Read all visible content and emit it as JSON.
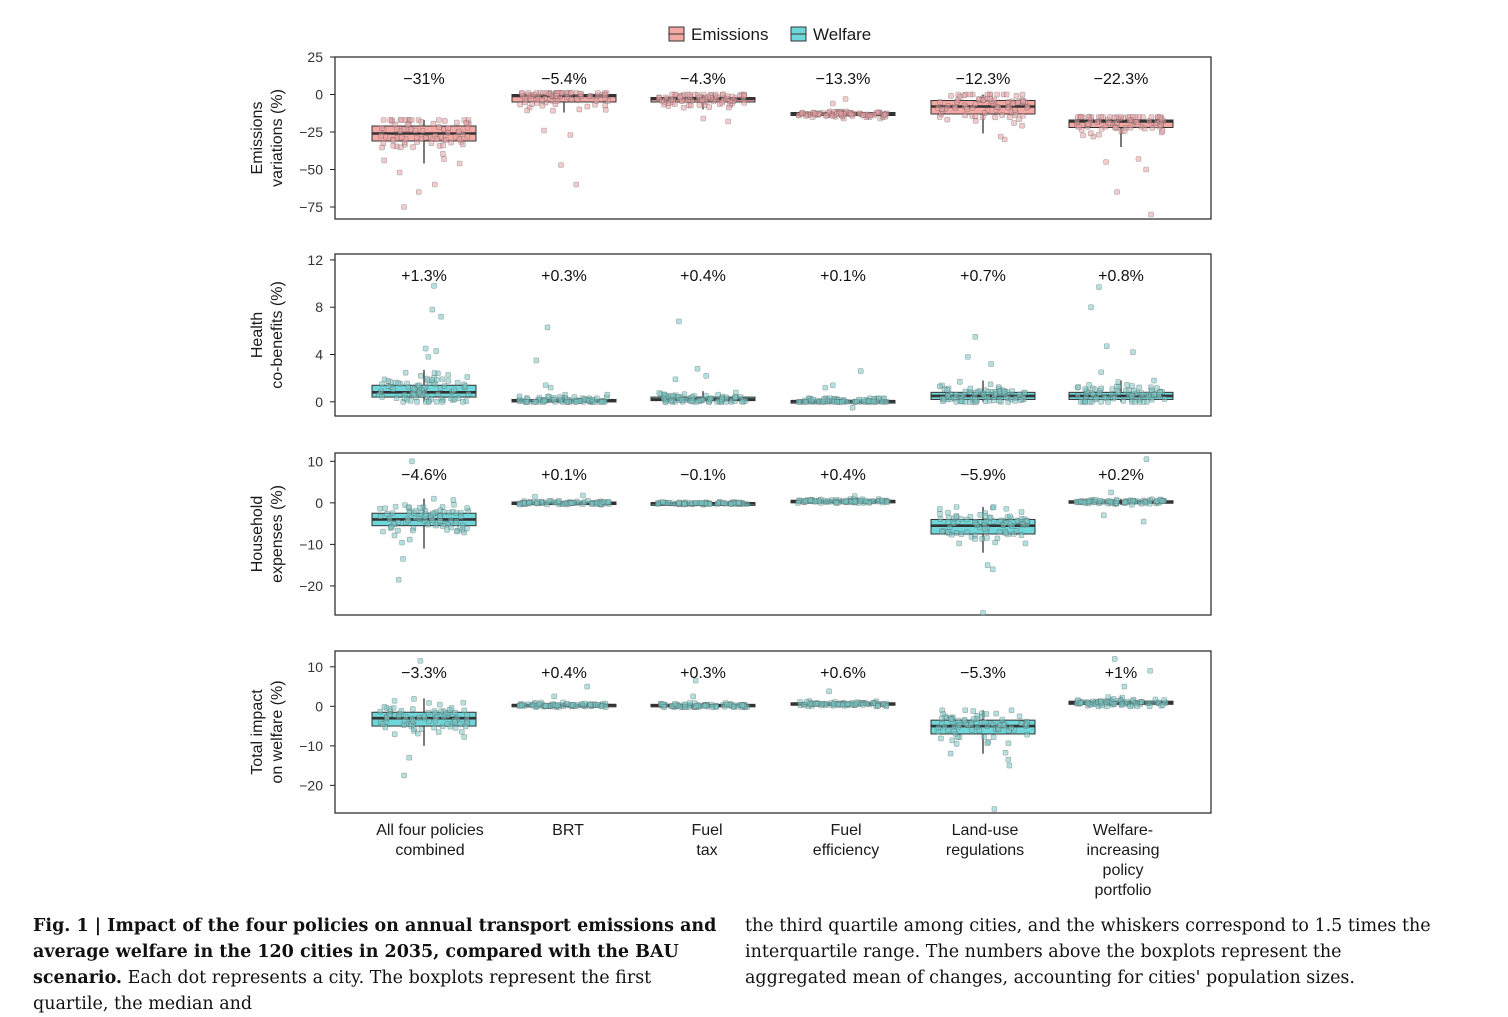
{
  "legend": [
    {
      "label": "Emissions",
      "color": "#f4a8a4"
    },
    {
      "label": "Welfare",
      "color": "#6fd6da"
    }
  ],
  "colors": {
    "emissions": "#f4a8a4",
    "welfare": "#6fd6da",
    "dot_emissions": "#e9a0a4",
    "dot_welfare": "#77c6c4",
    "median": "#333333"
  },
  "chart_data": {
    "type": "boxplot",
    "categories": [
      [
        "All four policies",
        "combined"
      ],
      [
        "BRT"
      ],
      [
        "Fuel",
        "tax"
      ],
      [
        "Fuel",
        "efficiency"
      ],
      [
        "Land-use",
        "regulations"
      ],
      [
        "Welfare-",
        "increasing",
        "policy",
        "portfolio"
      ]
    ],
    "panels": [
      {
        "ylabel": [
          "Emissions",
          "variations (%)"
        ],
        "ylim": [
          -83,
          25
        ],
        "yticks": [
          "25",
          "0",
          "−25",
          "−50",
          "−75"
        ],
        "ytick_values": [
          25,
          0,
          -25,
          -50,
          -75
        ],
        "color_key": "emissions",
        "annotations": [
          "−31%",
          "−5.4%",
          "−4.3%",
          "−13.3%",
          "−12.3%",
          "−22.3%"
        ],
        "boxes": [
          {
            "q1": -31,
            "median": -26,
            "q3": -21,
            "whisker_low": -46,
            "whisker_high": -17,
            "spread": 15,
            "outliers": [
              -75,
              -65,
              -60,
              -52
            ]
          },
          {
            "q1": -5,
            "median": -1,
            "q3": 0,
            "whisker_low": -12,
            "whisker_high": 1,
            "spread": 8,
            "outliers": [
              -47,
              -60,
              -27,
              -24
            ]
          },
          {
            "q1": -5,
            "median": -3,
            "q3": -2,
            "whisker_low": -10,
            "whisker_high": 0,
            "spread": 5,
            "outliers": [
              -18,
              -16
            ]
          },
          {
            "q1": -14,
            "median": -13,
            "q3": -12,
            "whisker_low": -16,
            "whisker_high": -10,
            "spread": 2,
            "outliers": [
              -3,
              -6
            ]
          },
          {
            "q1": -13,
            "median": -8,
            "q3": -4,
            "whisker_low": -26,
            "whisker_high": 0,
            "spread": 10,
            "outliers": [
              -30,
              -28
            ]
          },
          {
            "q1": -22,
            "median": -18,
            "q3": -17,
            "whisker_low": -35,
            "whisker_high": -15,
            "spread": 8,
            "outliers": [
              -80,
              -65,
              -50,
              -45,
              -43
            ]
          }
        ]
      },
      {
        "ylabel": [
          "Health",
          "co-benefits (%)"
        ],
        "ylim": [
          -1.2,
          12.5
        ],
        "yticks": [
          "12",
          "8",
          "4",
          "0"
        ],
        "ytick_values": [
          12,
          8,
          4,
          0
        ],
        "color_key": "welfare",
        "annotations": [
          "+1.3%",
          "+0.3%",
          "+0.4%",
          "+0.1%",
          "+0.7%",
          "+0.8%"
        ],
        "boxes": [
          {
            "q1": 0.4,
            "median": 0.8,
            "q3": 1.4,
            "whisker_low": 0,
            "whisker_high": 2.7,
            "spread": 1.2,
            "outliers": [
              9.8,
              7.8,
              7.2,
              4.5,
              4.3,
              3.8
            ]
          },
          {
            "q1": 0,
            "median": 0.1,
            "q3": 0.2,
            "whisker_low": 0,
            "whisker_high": 0.6,
            "spread": 0.4,
            "outliers": [
              6.3,
              3.5,
              1.4,
              1.2
            ]
          },
          {
            "q1": 0.1,
            "median": 0.2,
            "q3": 0.4,
            "whisker_low": 0,
            "whisker_high": 0.9,
            "spread": 0.5,
            "outliers": [
              6.8,
              2.8,
              2.2,
              1.9
            ]
          },
          {
            "q1": 0,
            "median": 0.05,
            "q3": 0.1,
            "whisker_low": 0,
            "whisker_high": 0.3,
            "spread": 0.3,
            "outliers": [
              2.6,
              1.4,
              1.2,
              -0.5
            ]
          },
          {
            "q1": 0.2,
            "median": 0.5,
            "q3": 0.8,
            "whisker_low": 0,
            "whisker_high": 1.8,
            "spread": 0.8,
            "outliers": [
              5.5,
              3.8,
              3.2
            ]
          },
          {
            "q1": 0.2,
            "median": 0.5,
            "q3": 0.8,
            "whisker_low": 0,
            "whisker_high": 1.8,
            "spread": 0.8,
            "outliers": [
              9.7,
              8,
              4.7,
              4.2,
              2.5
            ]
          }
        ]
      },
      {
        "ylabel": [
          "Household",
          "expenses (%)"
        ],
        "ylim": [
          -27,
          12
        ],
        "yticks": [
          "10",
          "0",
          "−10",
          "−20"
        ],
        "ytick_values": [
          10,
          0,
          -10,
          -20
        ],
        "color_key": "welfare",
        "annotations": [
          "−4.6%",
          "+0.1%",
          "−0.1%",
          "+0.4%",
          "−5.9%",
          "+0.2%"
        ],
        "boxes": [
          {
            "q1": -5.5,
            "median": -4,
            "q3": -2.5,
            "whisker_low": -11,
            "whisker_high": 1,
            "spread": 4,
            "outliers": [
              10,
              -13.5,
              -18.5
            ]
          },
          {
            "q1": -0.2,
            "median": 0,
            "q3": 0.2,
            "whisker_low": -0.4,
            "whisker_high": 0.5,
            "spread": 0.5,
            "outliers": [
              1.8,
              1.5
            ]
          },
          {
            "q1": -0.3,
            "median": -0.1,
            "q3": 0,
            "whisker_low": -0.4,
            "whisker_high": 0.2,
            "spread": 0.3,
            "outliers": []
          },
          {
            "q1": 0.2,
            "median": 0.4,
            "q3": 0.6,
            "whisker_low": 0,
            "whisker_high": 0.9,
            "spread": 0.4,
            "outliers": [
              1.6
            ]
          },
          {
            "q1": -7.5,
            "median": -5.5,
            "q3": -4,
            "whisker_low": -12,
            "whisker_high": -1,
            "spread": 4,
            "outliers": [
              -26.5,
              -16,
              -15
            ]
          },
          {
            "q1": 0,
            "median": 0.2,
            "q3": 0.5,
            "whisker_low": -0.5,
            "whisker_high": 1,
            "spread": 0.5,
            "outliers": [
              10.5,
              2.5,
              -4.5,
              -3
            ]
          }
        ]
      },
      {
        "ylabel": [
          "Total impact",
          "on welfare (%)"
        ],
        "ylim": [
          -27,
          14
        ],
        "yticks": [
          "10",
          "0",
          "−10",
          "−20"
        ],
        "ytick_values": [
          10,
          0,
          -10,
          -20
        ],
        "color_key": "welfare",
        "annotations": [
          "−3.3%",
          "+0.4%",
          "+0.3%",
          "+0.6%",
          "−5.3%",
          "+1%"
        ],
        "boxes": [
          {
            "q1": -5,
            "median": -3,
            "q3": -1.5,
            "whisker_low": -10,
            "whisker_high": 2,
            "spread": 3.5,
            "outliers": [
              11.5,
              -13,
              -17.5
            ]
          },
          {
            "q1": 0,
            "median": 0.3,
            "q3": 0.5,
            "whisker_low": -0.2,
            "whisker_high": 1,
            "spread": 0.5,
            "outliers": [
              5,
              2.5
            ]
          },
          {
            "q1": 0,
            "median": 0.2,
            "q3": 0.5,
            "whisker_low": -0.2,
            "whisker_high": 1,
            "spread": 0.5,
            "outliers": [
              6.5,
              2.5
            ]
          },
          {
            "q1": 0.3,
            "median": 0.6,
            "q3": 0.9,
            "whisker_low": 0,
            "whisker_high": 1.5,
            "spread": 0.5,
            "outliers": [
              3.8
            ]
          },
          {
            "q1": -7,
            "median": -5,
            "q3": -3.5,
            "whisker_low": -12,
            "whisker_high": -1,
            "spread": 4,
            "outliers": [
              -26,
              -15,
              -13.5
            ]
          },
          {
            "q1": 0.5,
            "median": 0.9,
            "q3": 1.3,
            "whisker_low": 0,
            "whisker_high": 2.5,
            "spread": 0.8,
            "outliers": [
              12,
              9,
              5
            ]
          }
        ]
      }
    ]
  },
  "caption": {
    "fig_label": "Fig. 1 | ",
    "bold_title": "Impact of the four policies on annual transport emissions and average welfare in the 120 cities in 2035, compared with the BAU scenario.",
    "text_left": " Each dot represents a city. The boxplots represent the first quartile, the median and",
    "text_right": "the third quartile among cities, and the whiskers correspond to 1.5 times the interquartile range. The numbers above the boxplots represent the aggregated mean of changes, accounting for cities' population sizes."
  }
}
